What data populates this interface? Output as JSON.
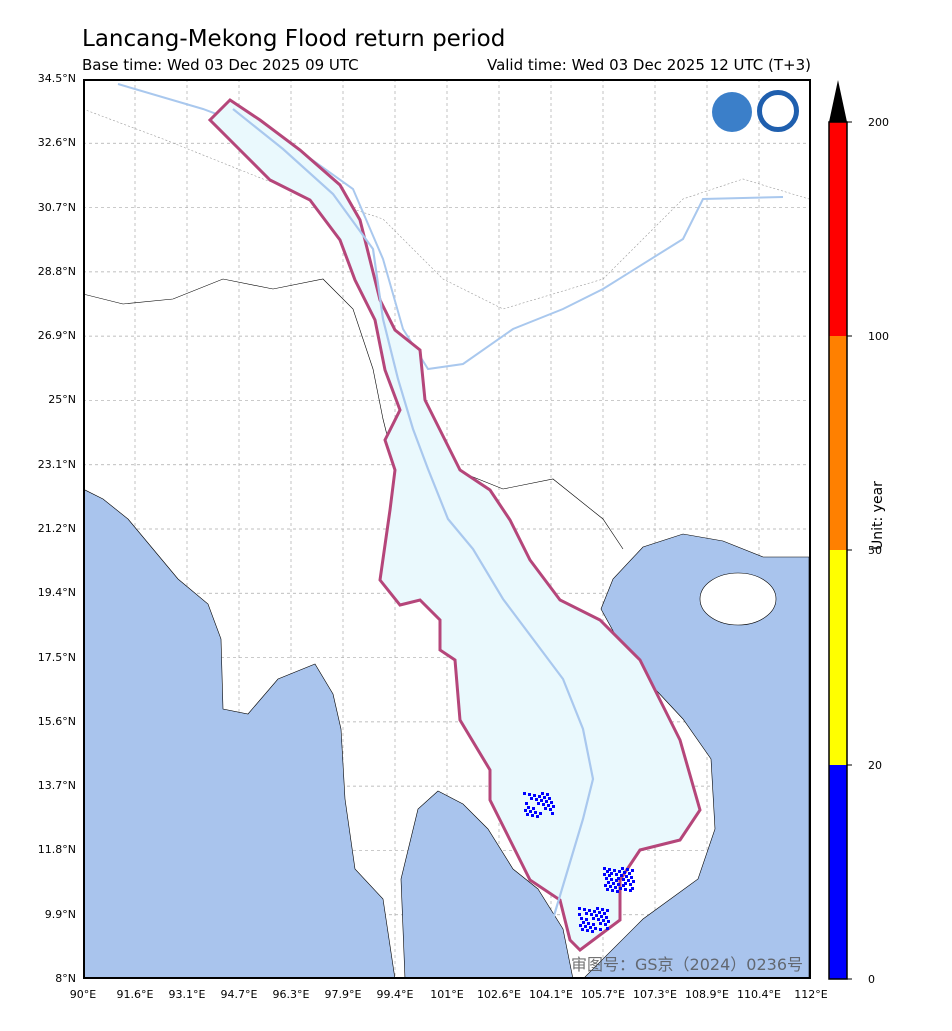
{
  "title": "Lancang-Mekong Flood return period",
  "base_time": "Base time: Wed 03 Dec 2025 09 UTC",
  "valid_time": "Valid time: Wed 03 Dec 2025 12 UTC (T+3)",
  "lat_ticks": [
    "34.5°N",
    "32.6°N",
    "30.7°N",
    "28.8°N",
    "26.9°N",
    "25°N",
    "23.1°N",
    "21.2°N",
    "19.4°N",
    "17.5°N",
    "15.6°N",
    "13.7°N",
    "11.8°N",
    "9.9°N",
    "8°N"
  ],
  "lon_ticks": [
    "90°E",
    "91.6°E",
    "93.1°E",
    "94.7°E",
    "96.3°E",
    "97.9°E",
    "99.4°E",
    "101°E",
    "102.6°E",
    "104.1°E",
    "105.7°E",
    "107.3°E",
    "108.9°E",
    "110.4°E",
    "112°E"
  ],
  "colorbar": {
    "label": "Unit: year",
    "ticks": [
      "0",
      "20",
      "50",
      "100",
      "200"
    ],
    "colors": [
      "#0000ff",
      "#ffff00",
      "#ff8000",
      "#ff0000",
      "#000000"
    ],
    "extend": "max"
  },
  "watermark": "审图号：GS京（2024）0236号",
  "logos": [
    "WMO",
    "China Meteorological Administration"
  ],
  "colors": {
    "ocean": "#a9c4ed",
    "basin": "#b5467a",
    "river": "#88d8f0",
    "major_river": "#a9c8ee"
  },
  "extent": {
    "lon": [
      90,
      112
    ],
    "lat": [
      8,
      34.5
    ]
  }
}
